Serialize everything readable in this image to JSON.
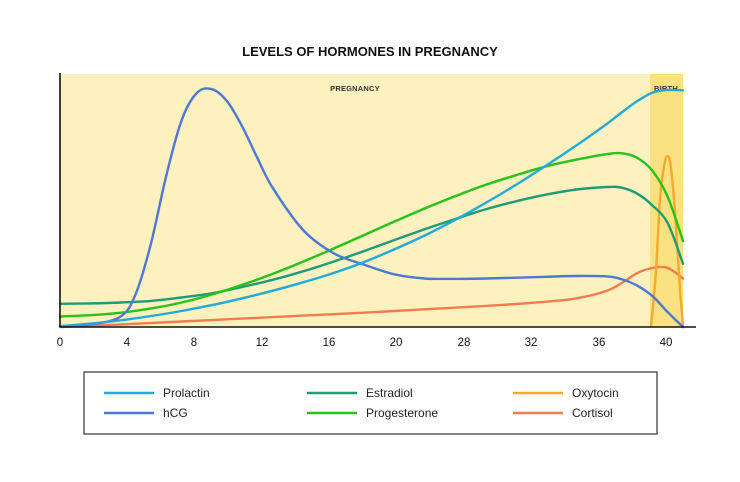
{
  "chart_data": {
    "type": "line",
    "title": "LEVELS OF HORMONES IN PREGNANCY",
    "xlabel": "",
    "ylabel": "",
    "x_tick_labels": [
      "0",
      "4",
      "8",
      "12",
      "16",
      "20",
      "28",
      "32",
      "36",
      "40"
    ],
    "bands": [
      {
        "label": "PREGNANCY",
        "color": "#fcf1bf"
      },
      {
        "label": "BIRTH",
        "color": "#fbe281"
      }
    ],
    "series": [
      {
        "name": "Prolactin",
        "color": "#22aadc",
        "x": [
          0,
          2,
          4,
          6,
          8,
          10,
          12,
          14,
          16,
          18,
          20,
          22,
          24,
          26,
          28,
          30,
          32,
          34,
          36,
          37,
          38,
          39,
          40,
          41
        ],
        "y": [
          0.2,
          0.8,
          1.6,
          2.6,
          3.8,
          5.2,
          6.8,
          8.6,
          10.6,
          12.8,
          15.4,
          18.4,
          21.7,
          25.4,
          29.4,
          33.7,
          38.3,
          43.1,
          48.2,
          51.0,
          53.6,
          55.6,
          56.2,
          56.1
        ]
      },
      {
        "name": "hCG",
        "color": "#4f78d4",
        "x": [
          0,
          2,
          4,
          5,
          6,
          7,
          8,
          9,
          10,
          11,
          12,
          13,
          14,
          16,
          18,
          20,
          22,
          24,
          26,
          28,
          30,
          32,
          34,
          36,
          37,
          38,
          39,
          40,
          41
        ],
        "y": [
          0.2,
          0.6,
          2.5,
          8,
          20,
          36,
          49,
          55.5,
          56.4,
          53.5,
          47.5,
          40,
          33,
          23,
          17.5,
          14.8,
          12.5,
          11.5,
          11.4,
          11.5,
          11.7,
          11.9,
          12.1,
          12.0,
          11.3,
          9.8,
          7.3,
          3.5,
          0
        ]
      },
      {
        "name": "Estradiol",
        "color": "#1f9b78",
        "x": [
          0,
          2,
          4,
          6,
          8,
          10,
          12,
          14,
          16,
          18,
          20,
          22,
          24,
          26,
          28,
          30,
          32,
          34,
          36,
          37,
          38,
          39,
          40,
          41
        ],
        "y": [
          5.5,
          5.6,
          5.8,
          6.2,
          7.0,
          8.0,
          9.5,
          11.2,
          13.2,
          15.5,
          18.0,
          20.6,
          23.2,
          25.6,
          27.9,
          29.8,
          31.4,
          32.6,
          33.2,
          33.0,
          31.6,
          28.8,
          24.6,
          15.0
        ]
      },
      {
        "name": "Progesterone",
        "color": "#27c31a",
        "x": [
          0,
          2,
          4,
          6,
          8,
          10,
          12,
          14,
          16,
          18,
          20,
          22,
          24,
          26,
          28,
          30,
          32,
          34,
          36,
          37,
          38,
          39,
          40,
          41
        ],
        "y": [
          2.5,
          2.8,
          3.4,
          4.4,
          5.8,
          7.7,
          10.0,
          12.6,
          15.5,
          18.6,
          21.8,
          25.0,
          28.1,
          31.0,
          33.7,
          36.0,
          38.1,
          39.7,
          41.0,
          41.2,
          40.1,
          37.0,
          30.8,
          20.4
        ]
      },
      {
        "name": "Oxytocin",
        "color": "#f5a92e",
        "x": [
          38.9,
          39.2,
          39.5,
          39.8,
          40.0,
          40.2,
          40.5,
          40.8,
          41.0
        ],
        "y": [
          0.5,
          12,
          31,
          39,
          40.5,
          38,
          26,
          9,
          0.5
        ]
      },
      {
        "name": "Cortisol",
        "color": "#f07c4f",
        "x": [
          0,
          4,
          8,
          12,
          16,
          20,
          24,
          28,
          32,
          34,
          36,
          37,
          38,
          39,
          40,
          41
        ],
        "y": [
          0,
          0.6,
          1.3,
          2.0,
          2.7,
          3.4,
          4.2,
          5.0,
          6.0,
          6.8,
          8.6,
          10.5,
          12.8,
          14.0,
          14.0,
          11.5
        ]
      }
    ],
    "xlim": [
      0,
      41
    ],
    "ylim": [
      0,
      60
    ],
    "grid": false,
    "legend_position": "bottom"
  }
}
